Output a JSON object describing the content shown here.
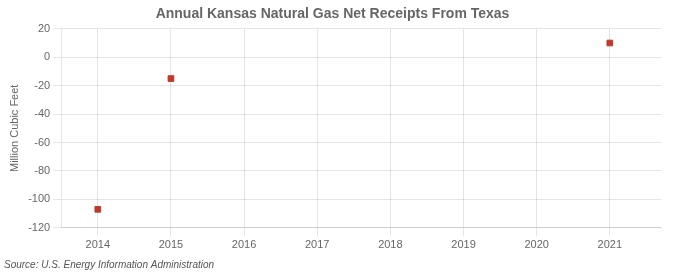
{
  "chart_data": {
    "type": "scatter",
    "title": "Annual Kansas Natural Gas Net Receipts From Texas",
    "ylabel": "Million Cubic Feet",
    "source": "Source: U.S. Energy Information Administration",
    "x": [
      2014,
      2015,
      2021
    ],
    "values": [
      -107,
      -15,
      10
    ],
    "color": "#c0392b",
    "marker": "square",
    "xlim": [
      2013.5,
      2021.7
    ],
    "xticks": [
      2014,
      2015,
      2016,
      2017,
      2018,
      2019,
      2020,
      2021
    ],
    "ylim": [
      -120,
      20
    ],
    "yticks": [
      20,
      0,
      -20,
      -40,
      -60,
      -80,
      -100,
      -120
    ],
    "grid": true
  }
}
